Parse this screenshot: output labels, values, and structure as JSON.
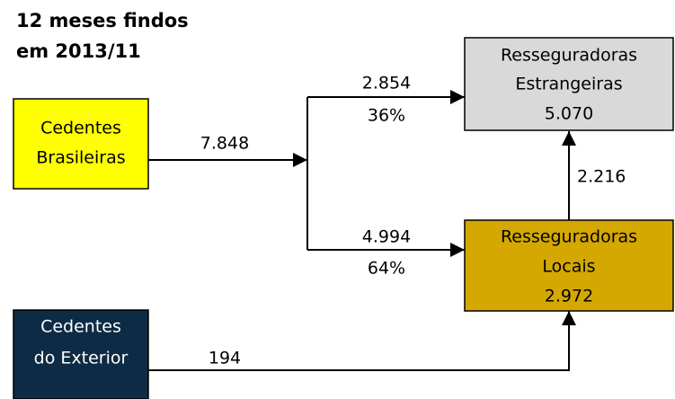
{
  "title": [
    "12 meses findos",
    "em 2013/11"
  ],
  "nodes": [
    {
      "label": [
        "Cedentes",
        "Brasileiras"
      ]
    },
    {
      "label": [
        "Resseguradoras",
        "Estrangeiras"
      ],
      "value": "5.070"
    },
    {
      "label": [
        "Resseguradoras",
        "Locais"
      ],
      "value": "2.972"
    },
    {
      "label": [
        "Cedentes",
        "do Exterior"
      ]
    }
  ],
  "flows": [
    {
      "value": "7.848"
    },
    {
      "value": "2.854",
      "share": "36%"
    },
    {
      "value": "4.994",
      "share": "64%"
    },
    {
      "value": "2.216"
    },
    {
      "value": "194"
    }
  ]
}
